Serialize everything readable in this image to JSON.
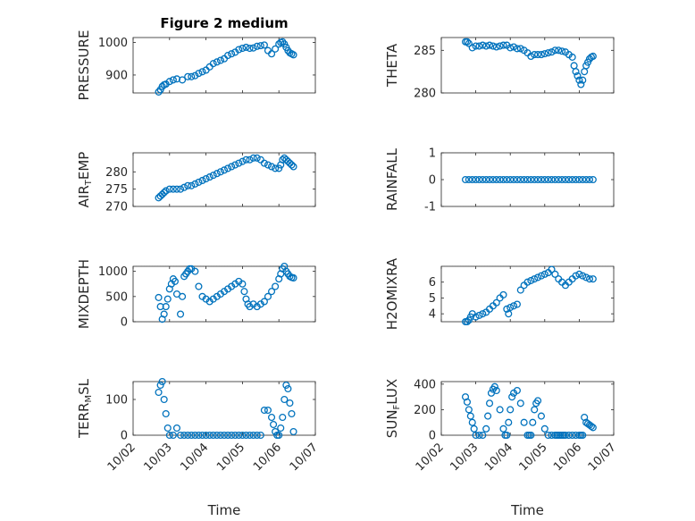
{
  "figure": {
    "title": "Figure 2 medium",
    "marker_color": "#0072BD"
  },
  "chart_data": [
    {
      "type": "scatter",
      "title": "Figure 2 medium",
      "ylabel": "PRESSURE",
      "ylabel_parts": [
        [
          "PRESSURE",
          false
        ]
      ],
      "xlim": [
        0,
        5
      ],
      "ylim": [
        845,
        1015
      ],
      "yticks": [
        900,
        1000
      ],
      "show_xticklabels": false,
      "xlabel": "",
      "grid": true,
      "minor_grid": true,
      "x": [
        0.7,
        0.75,
        0.8,
        0.85,
        0.9,
        1.0,
        1.1,
        1.2,
        1.35,
        1.5,
        1.6,
        1.7,
        1.8,
        1.9,
        2.0,
        2.1,
        2.2,
        2.3,
        2.4,
        2.5,
        2.6,
        2.7,
        2.8,
        2.9,
        3.0,
        3.1,
        3.2,
        3.3,
        3.4,
        3.5,
        3.6,
        3.7,
        3.8,
        3.9,
        4.0,
        4.05,
        4.1,
        4.15,
        4.2,
        4.25,
        4.3,
        4.35,
        4.4
      ],
      "y": [
        848,
        855,
        865,
        870,
        872,
        880,
        885,
        888,
        885,
        895,
        895,
        898,
        905,
        910,
        915,
        925,
        935,
        940,
        945,
        950,
        960,
        965,
        970,
        978,
        982,
        985,
        982,
        983,
        988,
        990,
        992,
        975,
        965,
        980,
        995,
        1000,
        1002,
        995,
        985,
        975,
        968,
        965,
        962
      ]
    },
    {
      "type": "scatter",
      "ylabel": "THETA",
      "ylabel_parts": [
        [
          "THETA",
          false
        ]
      ],
      "xlim": [
        0,
        5
      ],
      "ylim": [
        280,
        286.5
      ],
      "yticks": [
        280,
        285
      ],
      "show_xticklabels": false,
      "xlabel": "",
      "grid": true,
      "minor_grid": true,
      "x": [
        0.7,
        0.75,
        0.8,
        0.9,
        1.0,
        1.1,
        1.2,
        1.3,
        1.4,
        1.5,
        1.6,
        1.7,
        1.8,
        1.9,
        2.0,
        2.1,
        2.2,
        2.3,
        2.4,
        2.5,
        2.6,
        2.7,
        2.8,
        2.9,
        3.0,
        3.1,
        3.2,
        3.3,
        3.4,
        3.5,
        3.6,
        3.7,
        3.8,
        3.85,
        3.9,
        3.95,
        4.0,
        4.05,
        4.1,
        4.15,
        4.2,
        4.25,
        4.3,
        4.35,
        4.4
      ],
      "y": [
        286.0,
        286.0,
        285.8,
        285.3,
        285.5,
        285.5,
        285.6,
        285.5,
        285.6,
        285.5,
        285.4,
        285.5,
        285.6,
        285.6,
        285.3,
        285.4,
        285.2,
        285.2,
        285.0,
        284.7,
        284.3,
        284.5,
        284.5,
        284.5,
        284.6,
        284.7,
        284.8,
        285.0,
        285.0,
        284.9,
        284.8,
        284.5,
        284.2,
        283.2,
        282.5,
        282.0,
        281.5,
        281.0,
        281.5,
        282.5,
        283.2,
        283.6,
        284.0,
        284.2,
        284.3
      ]
    },
    {
      "type": "scatter",
      "ylabel": "AIR_TEMP",
      "ylabel_parts": [
        [
          "AIR",
          false
        ],
        [
          "T",
          true
        ],
        [
          "EMP",
          false
        ]
      ],
      "xlim": [
        0,
        5
      ],
      "ylim": [
        270,
        285.5
      ],
      "yticks": [
        270,
        275,
        280
      ],
      "show_xticklabels": false,
      "xlabel": "",
      "grid": true,
      "minor_grid": true,
      "x": [
        0.7,
        0.75,
        0.8,
        0.85,
        0.9,
        1.0,
        1.1,
        1.2,
        1.3,
        1.4,
        1.5,
        1.6,
        1.7,
        1.8,
        1.9,
        2.0,
        2.1,
        2.2,
        2.3,
        2.4,
        2.5,
        2.6,
        2.7,
        2.8,
        2.9,
        3.0,
        3.1,
        3.2,
        3.3,
        3.4,
        3.5,
        3.6,
        3.7,
        3.8,
        3.9,
        4.0,
        4.05,
        4.1,
        4.15,
        4.2,
        4.25,
        4.3,
        4.35,
        4.4
      ],
      "y": [
        272.5,
        273.0,
        273.5,
        274.0,
        274.5,
        275.0,
        275.0,
        275.0,
        275.0,
        275.5,
        276.0,
        276.0,
        276.5,
        277.0,
        277.5,
        278.0,
        278.5,
        279.0,
        279.5,
        280.0,
        280.5,
        281.0,
        281.5,
        282.0,
        282.5,
        283.0,
        283.5,
        283.5,
        284.0,
        284.0,
        283.5,
        282.5,
        282.0,
        281.5,
        281.0,
        281.0,
        282.0,
        283.5,
        284.0,
        283.5,
        283.0,
        282.5,
        282.0,
        281.5
      ]
    },
    {
      "type": "scatter",
      "ylabel": "RAINFALL",
      "ylabel_parts": [
        [
          "RAINFALL",
          false
        ]
      ],
      "xlim": [
        0,
        5
      ],
      "ylim": [
        -1,
        1
      ],
      "yticks": [
        -1,
        0,
        1
      ],
      "show_xticklabels": false,
      "xlabel": "",
      "grid": true,
      "minor_grid": true,
      "x": [
        0.7,
        0.8,
        0.9,
        1.0,
        1.1,
        1.2,
        1.3,
        1.4,
        1.5,
        1.6,
        1.7,
        1.8,
        1.9,
        2.0,
        2.1,
        2.2,
        2.3,
        2.4,
        2.5,
        2.6,
        2.7,
        2.8,
        2.9,
        3.0,
        3.1,
        3.2,
        3.3,
        3.4,
        3.5,
        3.6,
        3.7,
        3.8,
        3.9,
        4.0,
        4.1,
        4.2,
        4.3,
        4.4
      ],
      "y": [
        0,
        0,
        0,
        0,
        0,
        0,
        0,
        0,
        0,
        0,
        0,
        0,
        0,
        0,
        0,
        0,
        0,
        0,
        0,
        0,
        0,
        0,
        0,
        0,
        0,
        0,
        0,
        0,
        0,
        0,
        0,
        0,
        0,
        0,
        0,
        0,
        0,
        0
      ]
    },
    {
      "type": "scatter",
      "ylabel": "MIXDEPTH",
      "ylabel_parts": [
        [
          "MIXDEPTH",
          false
        ]
      ],
      "xlim": [
        0,
        5
      ],
      "ylim": [
        0,
        1100
      ],
      "yticks": [
        0,
        500,
        1000
      ],
      "show_xticklabels": false,
      "xlabel": "",
      "grid": true,
      "minor_grid": true,
      "x": [
        0.7,
        0.75,
        0.8,
        0.85,
        0.9,
        0.95,
        1.0,
        1.05,
        1.1,
        1.15,
        1.2,
        1.3,
        1.35,
        1.4,
        1.45,
        1.5,
        1.55,
        1.6,
        1.7,
        1.8,
        1.9,
        2.0,
        2.1,
        2.2,
        2.3,
        2.4,
        2.5,
        2.6,
        2.7,
        2.8,
        2.9,
        3.0,
        3.05,
        3.1,
        3.15,
        3.2,
        3.3,
        3.4,
        3.5,
        3.6,
        3.7,
        3.8,
        3.9,
        4.0,
        4.05,
        4.1,
        4.15,
        4.2,
        4.25,
        4.3,
        4.35,
        4.4
      ],
      "y": [
        480,
        300,
        50,
        150,
        300,
        450,
        650,
        750,
        850,
        800,
        550,
        150,
        500,
        900,
        950,
        1000,
        1050,
        1050,
        1000,
        700,
        500,
        450,
        400,
        450,
        500,
        550,
        600,
        650,
        700,
        750,
        800,
        750,
        600,
        450,
        350,
        300,
        350,
        300,
        350,
        400,
        500,
        600,
        700,
        850,
        950,
        1050,
        1100,
        1000,
        950,
        900,
        880,
        870
      ]
    },
    {
      "type": "scatter",
      "ylabel": "H2OMIXRA",
      "ylabel_parts": [
        [
          "H2OMIXRA",
          false
        ]
      ],
      "xlim": [
        0,
        5
      ],
      "ylim": [
        3.5,
        7
      ],
      "yticks": [
        4,
        5,
        6
      ],
      "show_xticklabels": false,
      "xlabel": "",
      "grid": true,
      "minor_grid": true,
      "x": [
        0.7,
        0.75,
        0.8,
        0.85,
        0.9,
        1.0,
        1.1,
        1.2,
        1.3,
        1.4,
        1.5,
        1.6,
        1.7,
        1.8,
        1.9,
        1.95,
        2.0,
        2.1,
        2.2,
        2.3,
        2.4,
        2.5,
        2.6,
        2.7,
        2.8,
        2.9,
        3.0,
        3.1,
        3.2,
        3.3,
        3.4,
        3.5,
        3.6,
        3.7,
        3.8,
        3.9,
        4.0,
        4.1,
        4.2,
        4.3,
        4.4
      ],
      "y": [
        3.5,
        3.5,
        3.6,
        3.8,
        4.0,
        3.8,
        3.9,
        4.0,
        4.1,
        4.3,
        4.5,
        4.7,
        5.0,
        5.2,
        4.3,
        4.0,
        4.4,
        4.5,
        4.6,
        5.5,
        5.8,
        6.0,
        6.1,
        6.2,
        6.3,
        6.4,
        6.5,
        6.6,
        6.8,
        6.5,
        6.2,
        6.0,
        5.8,
        6.0,
        6.2,
        6.4,
        6.5,
        6.4,
        6.3,
        6.2,
        6.2
      ]
    },
    {
      "type": "scatter",
      "ylabel": "TERR_MSL",
      "ylabel_parts": [
        [
          "TERR",
          false
        ],
        [
          "M",
          true
        ],
        [
          "SL",
          false
        ]
      ],
      "xlim": [
        0,
        5
      ],
      "ylim": [
        0,
        150
      ],
      "yticks": [
        0,
        100
      ],
      "xticks": [
        0,
        1,
        2,
        3,
        4,
        5
      ],
      "xticklabels": [
        "10/02",
        "10/03",
        "10/04",
        "10/05",
        "10/06",
        "10/07"
      ],
      "show_xticklabels": true,
      "xlabel": "Time",
      "grid": true,
      "minor_grid": true,
      "x": [
        0.7,
        0.75,
        0.8,
        0.85,
        0.9,
        0.95,
        1.0,
        1.1,
        1.2,
        1.3,
        1.4,
        1.5,
        1.6,
        1.7,
        1.8,
        1.9,
        2.0,
        2.1,
        2.2,
        2.3,
        2.4,
        2.5,
        2.6,
        2.7,
        2.8,
        2.9,
        3.0,
        3.1,
        3.2,
        3.3,
        3.4,
        3.5,
        3.6,
        3.7,
        3.8,
        3.85,
        3.9,
        3.95,
        4.0,
        4.05,
        4.1,
        4.15,
        4.2,
        4.25,
        4.3,
        4.35,
        4.4
      ],
      "y": [
        120,
        140,
        150,
        100,
        60,
        20,
        0,
        0,
        20,
        0,
        0,
        0,
        0,
        0,
        0,
        0,
        0,
        0,
        0,
        0,
        0,
        0,
        0,
        0,
        0,
        0,
        0,
        0,
        0,
        0,
        0,
        0,
        70,
        70,
        50,
        30,
        10,
        0,
        0,
        20,
        50,
        100,
        140,
        130,
        90,
        60,
        10
      ]
    },
    {
      "type": "scatter",
      "ylabel": "SUN_FLUX",
      "ylabel_parts": [
        [
          "SUN",
          false
        ],
        [
          "F",
          true
        ],
        [
          "LUX",
          false
        ]
      ],
      "xlim": [
        0,
        5
      ],
      "ylim": [
        0,
        420
      ],
      "yticks": [
        0,
        200,
        400
      ],
      "xticks": [
        0,
        1,
        2,
        3,
        4,
        5
      ],
      "xticklabels": [
        "10/02",
        "10/03",
        "10/04",
        "10/05",
        "10/06",
        "10/07"
      ],
      "show_xticklabels": true,
      "xlabel": "Time",
      "grid": true,
      "minor_grid": true,
      "x": [
        0.7,
        0.75,
        0.8,
        0.85,
        0.9,
        0.95,
        1.0,
        1.1,
        1.2,
        1.3,
        1.35,
        1.4,
        1.45,
        1.5,
        1.55,
        1.6,
        1.7,
        1.8,
        1.85,
        1.9,
        1.95,
        2.0,
        2.05,
        2.1,
        2.2,
        2.3,
        2.4,
        2.5,
        2.55,
        2.6,
        2.65,
        2.7,
        2.75,
        2.8,
        2.9,
        3.0,
        3.1,
        3.2,
        3.3,
        3.35,
        3.4,
        3.45,
        3.5,
        3.55,
        3.6,
        3.7,
        3.8,
        3.9,
        4.0,
        4.05,
        4.1,
        4.15,
        4.2,
        4.25,
        4.3,
        4.35,
        4.4
      ],
      "y": [
        300,
        260,
        200,
        150,
        100,
        50,
        0,
        0,
        0,
        50,
        150,
        250,
        330,
        360,
        380,
        350,
        200,
        50,
        0,
        0,
        100,
        200,
        300,
        330,
        350,
        250,
        100,
        0,
        0,
        0,
        100,
        200,
        250,
        270,
        150,
        50,
        0,
        0,
        0,
        0,
        0,
        0,
        0,
        0,
        0,
        0,
        0,
        0,
        0,
        0,
        0,
        140,
        100,
        90,
        80,
        70,
        60
      ]
    }
  ]
}
